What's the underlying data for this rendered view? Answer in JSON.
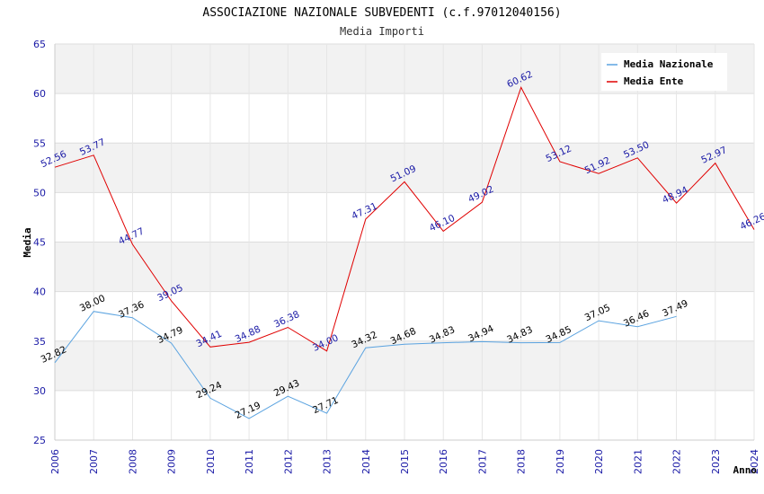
{
  "chart_data": {
    "type": "line",
    "title": "ASSOCIAZIONE NAZIONALE SUBVEDENTI (c.f.97012040156)",
    "subtitle": "Media Importi",
    "xlabel": "Anno",
    "ylabel": "Media",
    "ylim": [
      25,
      65
    ],
    "yticks": [
      25,
      30,
      35,
      40,
      45,
      50,
      55,
      60,
      65
    ],
    "grid": true,
    "legend_position": "top-right",
    "x": [
      2006,
      2007,
      2008,
      2009,
      2010,
      2011,
      2012,
      2013,
      2014,
      2015,
      2016,
      2017,
      2018,
      2019,
      2020,
      2021,
      2022,
      2023,
      2024
    ],
    "series": [
      {
        "name": "Media Nazionale",
        "color": "#5ba3e0",
        "values": [
          32.82,
          38.0,
          37.36,
          34.79,
          29.24,
          27.19,
          29.43,
          27.71,
          34.32,
          34.68,
          34.83,
          34.94,
          34.83,
          34.85,
          37.05,
          36.46,
          37.49,
          null,
          null
        ],
        "labels": [
          "32.82",
          "38.00",
          "37.36",
          "34.79",
          "29.24",
          "27.19",
          "29.43",
          "27.71",
          "34.32",
          "34.68",
          "34.83",
          "34.94",
          "34.83",
          "34.85",
          "37.05",
          "36.46",
          "37.49",
          "",
          ""
        ]
      },
      {
        "name": "Media Ente",
        "color": "#e00000",
        "values": [
          52.56,
          53.77,
          44.77,
          39.05,
          34.41,
          34.88,
          36.38,
          34.0,
          47.31,
          51.09,
          46.1,
          49.02,
          60.62,
          53.12,
          51.92,
          53.5,
          48.94,
          52.97,
          46.26
        ],
        "labels": [
          "52.56",
          "53.77",
          "44.77",
          "39.05",
          "34.41",
          "34.88",
          "36.38",
          "34.00",
          "47.31",
          "51.09",
          "46.10",
          "49.02",
          "60.62",
          "53.12",
          "51.92",
          "53.50",
          "48.94",
          "52.97",
          "46.26"
        ]
      }
    ]
  }
}
